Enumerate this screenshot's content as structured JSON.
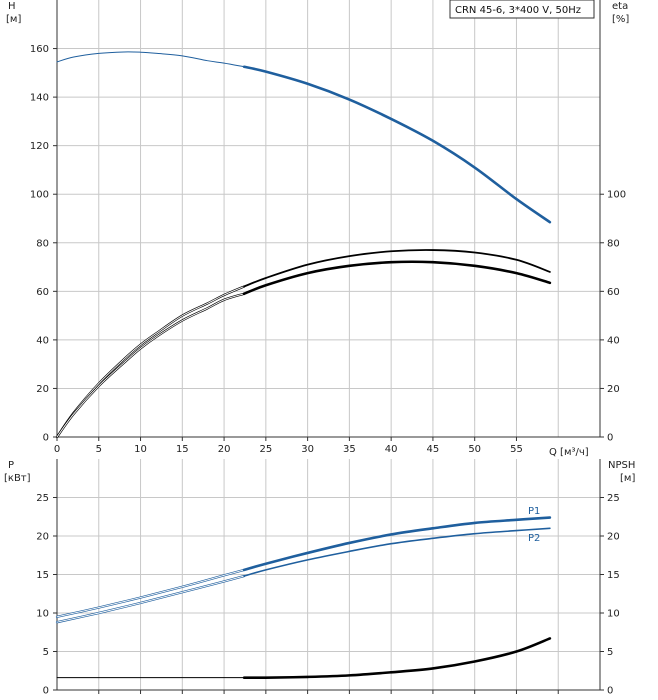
{
  "chart_data": [
    {
      "type": "line",
      "legend": "CRN 45-6, 3*400 V, 50Hz",
      "ylabel": "H",
      "yunit": "[м]",
      "y2label": "eta",
      "y2unit": "[%]",
      "xlabel": "Q [м³/ч]",
      "xlim": [
        0,
        65
      ],
      "ylim": [
        0,
        180
      ],
      "y2lim": [
        0,
        180
      ],
      "xticks": [
        "0",
        "5",
        "10",
        "15",
        "20",
        "25",
        "30",
        "35",
        "40",
        "45",
        "50",
        "55"
      ],
      "yticks": [
        "0",
        "20",
        "40",
        "60",
        "80",
        "100",
        "120",
        "140",
        "160"
      ],
      "y2ticks": [
        "0",
        "20",
        "40",
        "60",
        "80",
        "100"
      ],
      "grid": true,
      "colors": {
        "head": "#1f5f9e",
        "eta": "#000000",
        "grid": "#c8c8c8"
      },
      "series": [
        {
          "key": "head_thin",
          "x": [
            0,
            2,
            5,
            8,
            10,
            12,
            15,
            18,
            20,
            22.4
          ],
          "y": [
            154.5,
            156.5,
            158.0,
            158.6,
            158.5,
            158.0,
            157.0,
            155.0,
            154.0,
            152.5
          ]
        },
        {
          "key": "head_thick",
          "x": [
            22.4,
            25,
            30,
            35,
            40,
            45,
            50,
            55,
            59
          ],
          "y": [
            152.5,
            150.5,
            145.5,
            139.0,
            131.0,
            122.0,
            111.0,
            98.0,
            88.5
          ]
        },
        {
          "key": "eta_upper_thin",
          "x": [
            0,
            2,
            5,
            8,
            10,
            12,
            15,
            18,
            20,
            22.4
          ],
          "y": [
            0,
            10,
            22,
            32,
            38,
            43,
            50,
            55,
            58.5,
            62
          ]
        },
        {
          "key": "eta_upper_thick",
          "x": [
            22.4,
            25,
            30,
            35,
            40,
            45,
            50,
            55,
            59
          ],
          "y": [
            62,
            65.5,
            71,
            74.5,
            76.5,
            77,
            76,
            73,
            68
          ]
        },
        {
          "key": "eta_lower_thin",
          "x": [
            0,
            2,
            5,
            8,
            10,
            12,
            15,
            18,
            20,
            22.4
          ],
          "y": [
            0,
            9.5,
            21,
            30.5,
            36.5,
            41.5,
            48,
            53,
            56.5,
            59
          ]
        },
        {
          "key": "eta_lower_thick",
          "x": [
            22.4,
            25,
            30,
            35,
            40,
            45,
            50,
            55,
            59
          ],
          "y": [
            59,
            62.5,
            67.5,
            70.5,
            72,
            72,
            70.5,
            67.5,
            63.5
          ]
        }
      ]
    },
    {
      "type": "line",
      "ylabel": "P",
      "yunit": "[кВт]",
      "y2label": "NPSH",
      "y2unit": "[м]",
      "xlim": [
        0,
        65
      ],
      "ylim": [
        0,
        30
      ],
      "y2lim": [
        0,
        30
      ],
      "yticks": [
        "0",
        "5",
        "10",
        "15",
        "20",
        "25"
      ],
      "y2ticks": [
        "0",
        "5",
        "10",
        "15",
        "20",
        "25"
      ],
      "grid": true,
      "colors": {
        "power": "#1f5f9e",
        "npsh": "#000000"
      },
      "series": [
        {
          "key": "p1_thin",
          "x": [
            0,
            5,
            10,
            15,
            20,
            22.4
          ],
          "y": [
            9.5,
            10.7,
            12.0,
            13.4,
            14.9,
            15.6
          ]
        },
        {
          "key": "p1_thick",
          "x": [
            22.4,
            25,
            30,
            35,
            40,
            45,
            50,
            55,
            59
          ],
          "y": [
            15.6,
            16.4,
            17.8,
            19.1,
            20.2,
            21.0,
            21.7,
            22.1,
            22.4
          ]
        },
        {
          "key": "p2_thin",
          "x": [
            0,
            5,
            10,
            15,
            20,
            22.4
          ],
          "y": [
            8.8,
            10.0,
            11.3,
            12.7,
            14.1,
            14.8
          ]
        },
        {
          "key": "p2_thick",
          "x": [
            22.4,
            25,
            30,
            35,
            40,
            45,
            50,
            55,
            59
          ],
          "y": [
            14.8,
            15.6,
            16.9,
            18.0,
            19.0,
            19.7,
            20.3,
            20.7,
            21.0
          ]
        },
        {
          "key": "npsh_thin",
          "x": [
            0,
            5,
            10,
            15,
            20,
            22.4
          ],
          "y": [
            1.6,
            1.6,
            1.6,
            1.6,
            1.6,
            1.6
          ]
        },
        {
          "key": "npsh_thick",
          "x": [
            22.4,
            25,
            30,
            35,
            40,
            45,
            50,
            55,
            59
          ],
          "y": [
            1.6,
            1.6,
            1.7,
            1.9,
            2.3,
            2.8,
            3.7,
            5.0,
            6.7
          ]
        }
      ],
      "labels": {
        "p1": "P1",
        "p2": "P2"
      }
    }
  ]
}
